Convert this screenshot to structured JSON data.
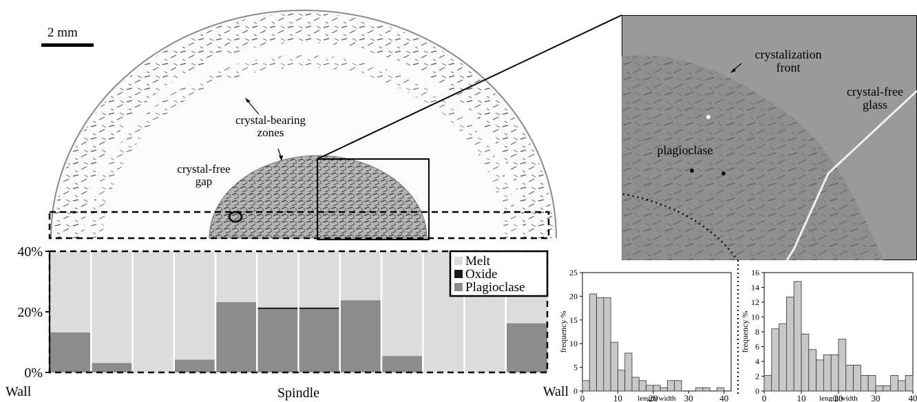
{
  "scale_bar": {
    "label": "2 mm"
  },
  "thin_section": {
    "labels": {
      "bearing_zones": "crystal-bearing\nzones",
      "free_gap": "crystal-free\ngap"
    }
  },
  "zoom": {
    "labels": {
      "front": "crystalization\nfront",
      "glass": "crystal-free\nglass",
      "plagioclase": "plagioclase"
    }
  },
  "colors": {
    "melt": "#dcdcdc",
    "oxide": "#1a1a1a",
    "plagioclase": "#8c8c8c",
    "hist_bar": "#c8c8c8",
    "zoom_bg": "#9a9a9a"
  },
  "chart_data": [
    {
      "type": "bar",
      "stacked": true,
      "y_ticks": [
        "0%",
        "20%",
        "40%"
      ],
      "ylim": [
        0,
        40
      ],
      "x_labels": [
        "Wall",
        "Spindle",
        "Wall"
      ],
      "legend": [
        "Melt",
        "Oxide",
        "Plagioclase"
      ],
      "legend_position": "top-right",
      "series": [
        {
          "name": "Plagioclase",
          "values": [
            13.2,
            3.1,
            0,
            4.2,
            23.2,
            21.0,
            21.0,
            23.8,
            5.4,
            0,
            0,
            16.2
          ]
        },
        {
          "name": "Oxide",
          "values": [
            0,
            0,
            0,
            0,
            0,
            0.4,
            0.4,
            0,
            0,
            0,
            0,
            0
          ]
        }
      ]
    },
    {
      "type": "bar",
      "xlabel": "length/width",
      "ylabel": "frequency %",
      "xlim": [
        0,
        42
      ],
      "ylim": [
        0,
        25
      ],
      "x_ticks": [
        "0",
        "10",
        "20",
        "30",
        "40"
      ],
      "y_ticks": [
        "0",
        "5",
        "10",
        "15",
        "20",
        "25"
      ],
      "bin_width": 2,
      "bin_starts": [
        0,
        2,
        4,
        6,
        8,
        10,
        12,
        14,
        16,
        18,
        20,
        22,
        24,
        26,
        28,
        30,
        32,
        34,
        36,
        38,
        40
      ],
      "values": [
        2.2,
        20.5,
        19.7,
        19.7,
        10.3,
        4.4,
        8.0,
        2.9,
        2.2,
        1.2,
        1.2,
        0.7,
        2.2,
        2.2,
        0,
        0,
        0.7,
        0.7,
        0,
        0.7,
        0
      ]
    },
    {
      "type": "bar",
      "xlabel": "length/width",
      "ylabel": "frequency %",
      "xlim": [
        0,
        40
      ],
      "ylim": [
        0,
        16
      ],
      "x_ticks": [
        "0",
        "10",
        "20",
        "30",
        "40"
      ],
      "y_ticks": [
        "0",
        "2",
        "4",
        "6",
        "8",
        "10",
        "12",
        "14",
        "16"
      ],
      "bin_width": 2,
      "bin_starts": [
        0,
        2,
        4,
        6,
        8,
        10,
        12,
        14,
        16,
        18,
        20,
        22,
        24,
        26,
        28,
        30,
        32,
        34,
        36,
        38
      ],
      "values": [
        2.1,
        8.4,
        9.1,
        12.7,
        14.8,
        7.7,
        5.6,
        4.2,
        4.9,
        4.9,
        7.0,
        3.5,
        3.5,
        2.1,
        2.1,
        0.7,
        0.7,
        2.1,
        1.4,
        2.1
      ]
    }
  ]
}
